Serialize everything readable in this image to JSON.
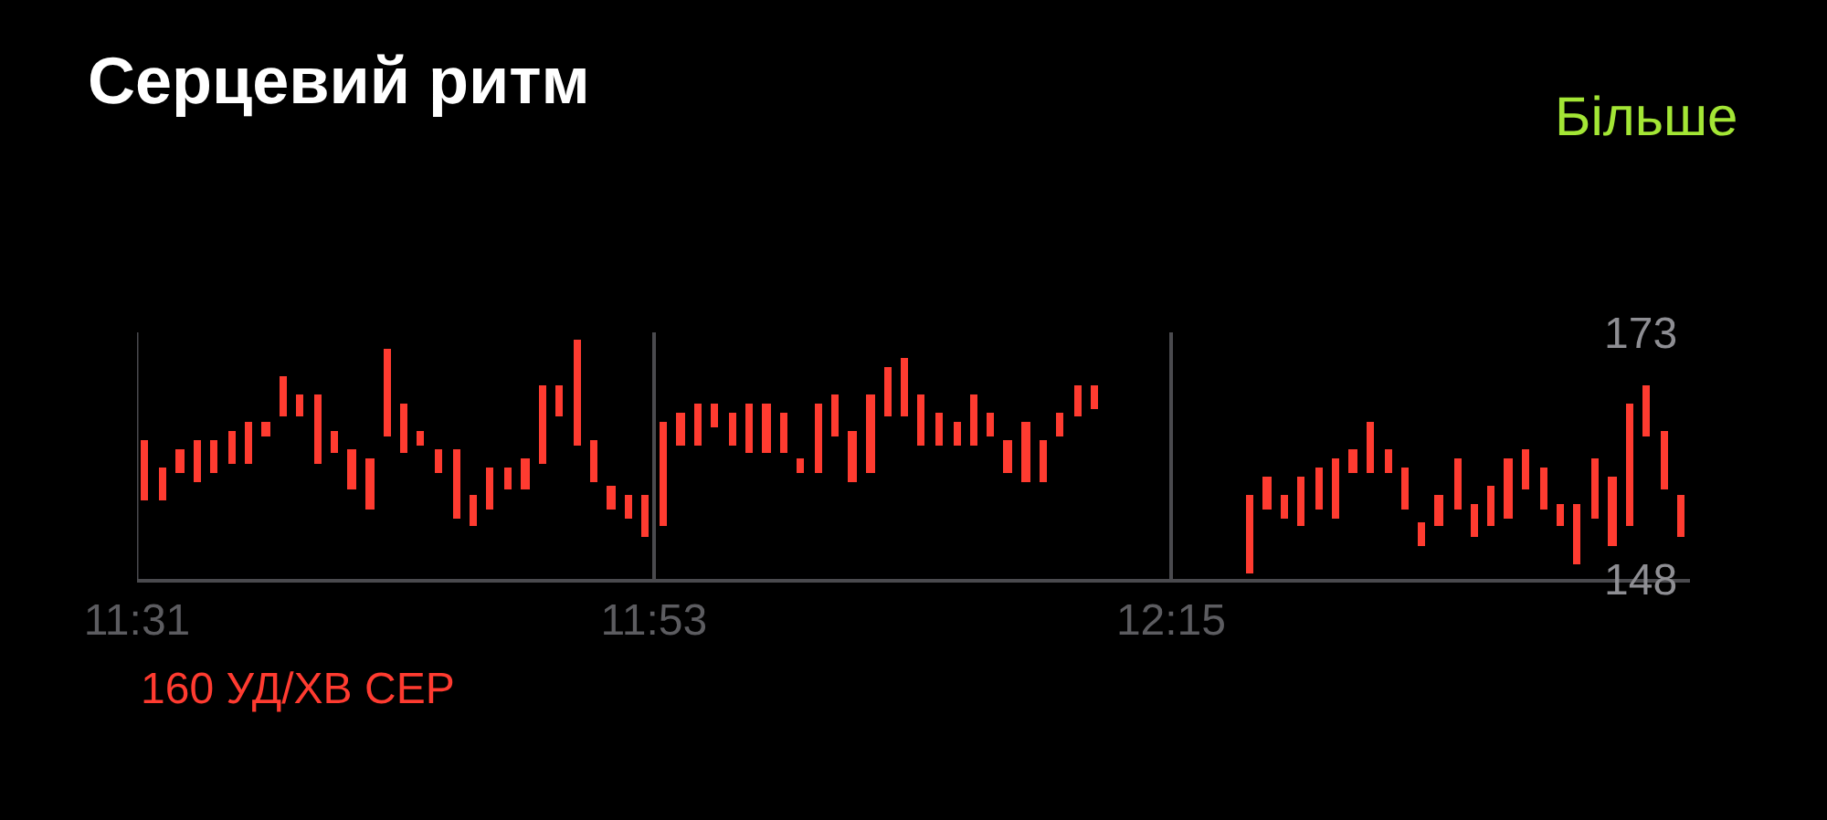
{
  "chart_data": {
    "type": "bar",
    "title": "Серцевий ритм",
    "annotations": [
      "Більше",
      "160 УД/ХВ СЕР"
    ],
    "color": "#ff3b30",
    "x": [
      11.522,
      11.535,
      11.547,
      11.559,
      11.571,
      11.584,
      11.596,
      11.608,
      11.62,
      11.632,
      11.645,
      11.657,
      11.669,
      11.682,
      11.694,
      11.706,
      11.718,
      11.73,
      11.743,
      11.755,
      11.767,
      11.78,
      11.792,
      11.804,
      11.816,
      11.829,
      11.841,
      11.853,
      11.865,
      11.877,
      11.89,
      11.902,
      11.914,
      11.926,
      11.939,
      11.951,
      11.963,
      11.975,
      11.987,
      12.0,
      12.012,
      12.024,
      12.037,
      12.049,
      12.061,
      12.073,
      12.085,
      12.098,
      12.11,
      12.122,
      12.134,
      12.147,
      12.159,
      12.171,
      12.184,
      12.196,
      12.306,
      12.318,
      12.33,
      12.342,
      12.355,
      12.367,
      12.379,
      12.391,
      12.404,
      12.416,
      12.428,
      12.44,
      12.453,
      12.465,
      12.477,
      12.489,
      12.501,
      12.514,
      12.526,
      12.538,
      12.551,
      12.563,
      12.575,
      12.587,
      12.6,
      12.612
    ],
    "base": [
      155.9,
      155.9,
      158.8,
      157.9,
      158.8,
      159.7,
      159.7,
      162.5,
      164.4,
      164.4,
      159.7,
      160.7,
      157.0,
      155.1,
      162.5,
      160.7,
      161.6,
      158.8,
      154.2,
      153.3,
      155.1,
      157.0,
      157.0,
      159.7,
      164.4,
      161.6,
      157.9,
      155.1,
      154.2,
      152.3,
      153.3,
      161.6,
      161.6,
      163.4,
      161.6,
      160.7,
      160.7,
      160.7,
      158.8,
      158.8,
      162.5,
      157.9,
      158.8,
      164.4,
      164.4,
      161.6,
      161.6,
      161.6,
      161.6,
      162.5,
      158.8,
      157.9,
      157.9,
      162.5,
      164.4,
      165.3,
      148.6,
      155.1,
      154.2,
      153.3,
      155.1,
      154.2,
      158.8,
      158.8,
      158.8,
      155.1,
      151.4,
      153.3,
      155.1,
      152.3,
      153.3,
      154.2,
      157.0,
      155.1,
      153.3,
      149.5,
      154.2,
      151.4,
      153.3,
      162.5,
      157.0,
      152.3
    ],
    "values": [
      6.2,
      3.4,
      2.4,
      4.2,
      3.3,
      3.3,
      4.2,
      1.4,
      4.2,
      2.3,
      7.0,
      2.3,
      4.2,
      5.1,
      8.8,
      5.1,
      1.4,
      2.4,
      7.0,
      3.2,
      4.2,
      2.3,
      3.2,
      7.9,
      3.2,
      10.7,
      4.2,
      2.3,
      2.3,
      4.2,
      10.6,
      3.3,
      4.2,
      2.4,
      3.3,
      5.1,
      5.1,
      4.2,
      1.4,
      7.0,
      4.2,
      5.1,
      7.9,
      5.1,
      6.0,
      5.1,
      3.3,
      2.3,
      5.1,
      2.4,
      3.3,
      6.0,
      4.2,
      2.4,
      3.2,
      2.3,
      7.9,
      3.3,
      2.3,
      5.1,
      4.2,
      6.0,
      2.4,
      5.1,
      2.4,
      4.2,
      2.3,
      3.2,
      5.1,
      3.3,
      4.1,
      6.0,
      4.2,
      4.2,
      2.3,
      6.1,
      6.0,
      7.0,
      12.5,
      5.1,
      6.0,
      4.2
    ],
    "xlim": [
      11.5167,
      12.618
    ],
    "xticks": [
      {
        "value": 11.5167,
        "label": "11:31"
      },
      {
        "value": 11.8833,
        "label": "11:53"
      },
      {
        "value": 12.25,
        "label": "12:15"
      }
    ],
    "ylim": [
      148,
      173
    ],
    "yticks": [
      148,
      173
    ],
    "grid": "x"
  }
}
